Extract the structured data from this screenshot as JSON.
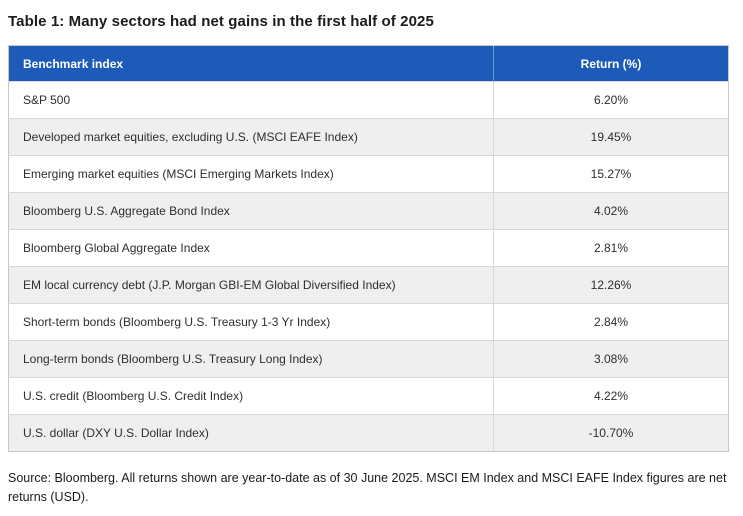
{
  "title": "Table 1: Many sectors had net gains in the first half of 2025",
  "table": {
    "columns": [
      "Benchmark index",
      "Return (%)"
    ],
    "rows": [
      {
        "index": "S&P 500",
        "return": "6.20%"
      },
      {
        "index": "Developed market equities, excluding U.S. (MSCI EAFE Index)",
        "return": "19.45%"
      },
      {
        "index": "Emerging market equities (MSCI Emerging Markets Index)",
        "return": "15.27%"
      },
      {
        "index": "Bloomberg U.S. Aggregate Bond Index",
        "return": "4.02%"
      },
      {
        "index": "Bloomberg Global Aggregate Index",
        "return": "2.81%"
      },
      {
        "index": "EM local currency debt (J.P. Morgan GBI-EM Global Diversified Index)",
        "return": "12.26%"
      },
      {
        "index": "Short-term bonds (Bloomberg U.S. Treasury 1-3 Yr Index)",
        "return": "2.84%"
      },
      {
        "index": "Long-term bonds (Bloomberg U.S. Treasury Long Index)",
        "return": "3.08%"
      },
      {
        "index": "U.S. credit (Bloomberg U.S. Credit Index)",
        "return": "4.22%"
      },
      {
        "index": "U.S. dollar (DXY U.S. Dollar Index)",
        "return": "-10.70%"
      }
    ]
  },
  "source": "Source: Bloomberg. All returns shown are year-to-date as of 30 June 2025. MSCI EM Index and MSCI EAFE Index figures are net returns (USD).",
  "colors": {
    "header_bg": "#1e5bb8",
    "header_text": "#ffffff",
    "row_alt_bg": "#efefef",
    "border": "#c6c6c6"
  },
  "chart_data": {
    "type": "table",
    "title": "Table 1: Many sectors had net gains in the first half of 2025",
    "columns": [
      "Benchmark index",
      "Return (%)"
    ],
    "rows": [
      [
        "S&P 500",
        6.2
      ],
      [
        "Developed market equities, excluding U.S. (MSCI EAFE Index)",
        19.45
      ],
      [
        "Emerging market equities (MSCI Emerging Markets Index)",
        15.27
      ],
      [
        "Bloomberg U.S. Aggregate Bond Index",
        4.02
      ],
      [
        "Bloomberg Global Aggregate Index",
        2.81
      ],
      [
        "EM local currency debt (J.P. Morgan GBI-EM Global Diversified Index)",
        12.26
      ],
      [
        "Short-term bonds (Bloomberg U.S. Treasury 1-3 Yr Index)",
        2.84
      ],
      [
        "Long-term bonds (Bloomberg U.S. Treasury Long Index)",
        3.08
      ],
      [
        "U.S. credit (Bloomberg U.S. Credit Index)",
        4.22
      ],
      [
        "U.S. dollar (DXY U.S. Dollar Index)",
        -10.7
      ]
    ],
    "source": "Source: Bloomberg. All returns shown are year-to-date as of 30 June 2025. MSCI EM Index and MSCI EAFE Index figures are net returns (USD)."
  }
}
